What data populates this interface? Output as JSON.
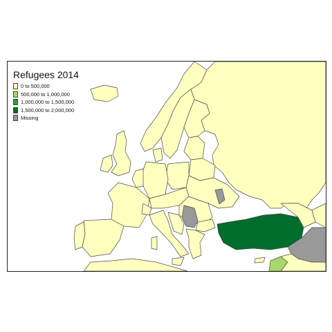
{
  "map": {
    "title": "Refugees 2014",
    "colors": {
      "class_0_500k": "#ffffbf",
      "class_500k_1m": "#a6d96a",
      "class_1m_1_5m": "#33a02c",
      "class_1_5m_2m": "#006d2c",
      "missing": "#999999",
      "background": "#ffffff"
    },
    "legend": [
      {
        "label": "0 to 500,000",
        "color": "#ffffbf"
      },
      {
        "label": "500,000 to 1,000,000",
        "color": "#a6d96a"
      },
      {
        "label": "1,000,000 to 1,500,000",
        "color": "#33a02c"
      },
      {
        "label": "1,500,000 to 2,000,000",
        "color": "#006d2c"
      },
      {
        "label": "Missing",
        "color": "#999999"
      }
    ],
    "highlighted_countries": [
      {
        "region": "Turkey",
        "class": "1,500,000 to 2,000,000"
      },
      {
        "region": "Jordan",
        "class": "500,000 to 1,000,000"
      },
      {
        "region": "Syria / Iraq",
        "class": "Missing"
      },
      {
        "region": "Serbia / Kosovo",
        "class": "Missing"
      },
      {
        "region": "Moldova",
        "class": "Missing"
      }
    ]
  }
}
